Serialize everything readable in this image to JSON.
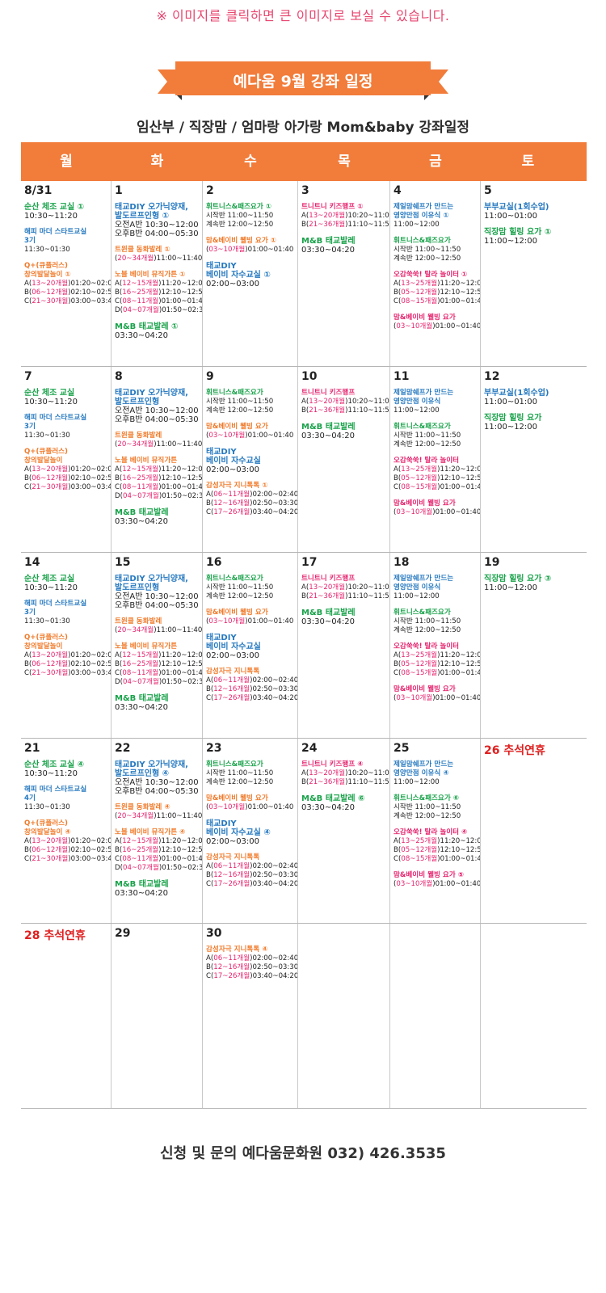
{
  "notice": "※ 이미지를 클릭하면 큰 이미지로 보실 수 있습니다.",
  "banner_title": "예다움 9월 강좌 일정",
  "subtitle": "임산부 / 직장맘 / 엄마랑 아가랑 Mom&baby 강좌일정",
  "colors": {
    "accent": "#f27c3a",
    "green": "#19a24a",
    "blue": "#2679c0",
    "orange": "#f07a2a",
    "pink": "#e5226d",
    "holiday": "#e01f1f"
  },
  "weekdays": [
    "월",
    "화",
    "수",
    "목",
    "금",
    "토"
  ],
  "weeks": [
    [
      {
        "date": "8/31",
        "events": [
          {
            "title": [
              "순산 체조 교실 ①"
            ],
            "c": "green",
            "big": true,
            "lines": [
              "10:30~11:20"
            ]
          },
          {
            "title": [
              "해피 마더 스타트교실",
              "3기"
            ],
            "c": "blue",
            "lines": [
              "11:30~01:30"
            ]
          },
          {
            "title": [
              "Q+(큐플러스)",
              "창의발달놀이 ①"
            ],
            "c": "orange",
            "lines": [
              "A|13~20개월|01:20~02:00",
              "B|06~12개월|02:10~02:50",
              "C|21~30개월|03:00~03:40"
            ]
          }
        ]
      },
      {
        "date": "1",
        "events": [
          {
            "title": [
              "태교DIY 오가닉양재,",
              "발도르프인형 ①"
            ],
            "c": "blue",
            "big": true,
            "lines": [
              "오전A반 10:30~12:00",
              "오후B반 04:00~05:30"
            ]
          },
          {
            "title": [
              "트윈클 동화발레 ①"
            ],
            "c": "orange",
            "lines": [
              "|20~34개월|11:00~11:40"
            ]
          },
          {
            "title": [
              "노블 베이비 뮤직가튼 ①"
            ],
            "c": "orange",
            "lines": [
              "A|12~15개월|11:20~12:00",
              "B|16~25개월|12:10~12:50",
              "C|08~11개월|01:00~01:40",
              "D|04~07개월|01:50~02:30"
            ]
          },
          {
            "title": [
              "M&B 태교발레 ①"
            ],
            "c": "green",
            "big": true,
            "lines": [
              "03:30~04:20"
            ]
          }
        ]
      },
      {
        "date": "2",
        "events": [
          {
            "title": [
              "휘트니스&패즈요가 ①"
            ],
            "c": "green",
            "lines": [
              "시작반 11:00~11:50",
              "계속반 12:00~12:50"
            ]
          },
          {
            "title": [
              "맘&베이비 웰빙 요가 ①"
            ],
            "c": "orange",
            "lines": [
              "|03~10개월|01:00~01:40"
            ]
          },
          {
            "title": [
              "태교DIY",
              "베이비 자수교실 ①"
            ],
            "c": "blue",
            "big": true,
            "lines": [
              "02:00~03:00"
            ]
          }
        ]
      },
      {
        "date": "3",
        "events": [
          {
            "title": [
              "트니트니 키즈행프 ①"
            ],
            "c": "pink",
            "lines": [
              "A|13~20개월|10:20~11:00",
              "B|21~36개월|11:10~11:50"
            ]
          },
          {
            "title": [
              "M&B 태교발레"
            ],
            "c": "green",
            "big": true,
            "lines": [
              "03:30~04:20"
            ]
          }
        ]
      },
      {
        "date": "4",
        "events": [
          {
            "title": [
              "제일맘쉐프가 만드는",
              "영양만점 이유식 ①"
            ],
            "c": "blue",
            "lines": [
              "11:00~12:00"
            ]
          },
          {
            "title": [
              "휘트니스&패즈요가"
            ],
            "c": "green",
            "lines": [
              "시작반 11:00~11:50",
              "계속반 12:00~12:50"
            ]
          },
          {
            "title": [
              "오감쑥쑥! 탈라 놀이터 ①"
            ],
            "c": "pink",
            "lines": [
              "A|13~25개월|11:20~12:00",
              "B|05~12개월|12:10~12:50",
              "C|08~15개월|01:00~01:40"
            ]
          },
          {
            "title": [
              "맘&베이비 웰빙 요가"
            ],
            "c": "pink",
            "lines": [
              "|03~10개월|01:00~01:40"
            ]
          }
        ]
      },
      {
        "date": "5",
        "events": [
          {
            "title": [
              "부부교실(1회수업)"
            ],
            "c": "blue",
            "big": true,
            "lines": [
              "11:00~01:00"
            ]
          },
          {
            "title": [
              "직장맘 힐링 요가 ①"
            ],
            "c": "green",
            "big": true,
            "lines": [
              "11:00~12:00"
            ]
          }
        ]
      }
    ],
    [
      {
        "date": "7",
        "events": [
          {
            "title": [
              "순산 체조 교실"
            ],
            "c": "green",
            "big": true,
            "lines": [
              "10:30~11:20"
            ]
          },
          {
            "title": [
              "해피 마더 스타트교실",
              "3기"
            ],
            "c": "blue",
            "lines": [
              "11:30~01:30"
            ]
          },
          {
            "title": [
              "Q+(큐플러스)",
              "창의발달놀이"
            ],
            "c": "orange",
            "lines": [
              "A|13~20개월|01:20~02:00",
              "B|06~12개월|02:10~02:50",
              "C|21~30개월|03:00~03:40"
            ]
          }
        ]
      },
      {
        "date": "8",
        "events": [
          {
            "title": [
              "태교DIY 오가닉양재,",
              "발도르프인형"
            ],
            "c": "blue",
            "big": true,
            "lines": [
              "오전A반 10:30~12:00",
              "오후B반 04:00~05:30"
            ]
          },
          {
            "title": [
              "트윈클 동화발레"
            ],
            "c": "orange",
            "lines": [
              "|20~34개월|11:00~11:40"
            ]
          },
          {
            "title": [
              "노블 베이비 뮤직가튼"
            ],
            "c": "orange",
            "lines": [
              "A|12~15개월|11:20~12:00",
              "B|16~25개월|12:10~12:50",
              "C|08~11개월|01:00~01:40",
              "D|04~07개월|01:50~02:30"
            ]
          },
          {
            "title": [
              "M&B 태교발레"
            ],
            "c": "green",
            "big": true,
            "lines": [
              "03:30~04:20"
            ]
          }
        ]
      },
      {
        "date": "9",
        "events": [
          {
            "title": [
              "휘트니스&패즈요가"
            ],
            "c": "green",
            "lines": [
              "시작반 11:00~11:50",
              "계속반 12:00~12:50"
            ]
          },
          {
            "title": [
              "맘&베이비 웰빙 요가"
            ],
            "c": "orange",
            "lines": [
              "|03~10개월|01:00~01:40"
            ]
          },
          {
            "title": [
              "태교DIY",
              "베이비 자수교실"
            ],
            "c": "blue",
            "big": true,
            "lines": [
              "02:00~03:00"
            ]
          },
          {
            "title": [
              "감성자극 지니톡톡 ①"
            ],
            "c": "orange",
            "lines": [
              "A|06~11개월|02:00~02:40",
              "B|12~16개월|02:50~03:30",
              "C|17~26개월|03:40~04:20"
            ]
          }
        ]
      },
      {
        "date": "10",
        "events": [
          {
            "title": [
              "트니트니 키즈행프"
            ],
            "c": "pink",
            "lines": [
              "A|13~20개월|10:20~11:00",
              "B|21~36개월|11:10~11:50"
            ]
          },
          {
            "title": [
              "M&B 태교발레"
            ],
            "c": "green",
            "big": true,
            "lines": [
              "03:30~04:20"
            ]
          }
        ]
      },
      {
        "date": "11",
        "events": [
          {
            "title": [
              "제일맘쉐프가 만드는",
              "영양만점 이유식"
            ],
            "c": "blue",
            "lines": [
              "11:00~12:00"
            ]
          },
          {
            "title": [
              "휘트니스&패즈요가"
            ],
            "c": "green",
            "lines": [
              "시작반 11:00~11:50",
              "계속반 12:00~12:50"
            ]
          },
          {
            "title": [
              "오감쑥쑥! 탈라 놀이터"
            ],
            "c": "pink",
            "lines": [
              "A|13~25개월|11:20~12:00",
              "B|05~12개월|12:10~12:50",
              "C|08~15개월|01:00~01:40"
            ]
          },
          {
            "title": [
              "맘&베이비 웰빙 요가"
            ],
            "c": "pink",
            "lines": [
              "|03~10개월|01:00~01:40"
            ]
          }
        ]
      },
      {
        "date": "12",
        "events": [
          {
            "title": [
              "부부교실(1회수업)"
            ],
            "c": "blue",
            "big": true,
            "lines": [
              "11:00~01:00"
            ]
          },
          {
            "title": [
              "직장맘 힐링 요가"
            ],
            "c": "green",
            "big": true,
            "lines": [
              "11:00~12:00"
            ]
          }
        ]
      }
    ],
    [
      {
        "date": "14",
        "events": [
          {
            "title": [
              "순산 체조 교실"
            ],
            "c": "green",
            "big": true,
            "lines": [
              "10:30~11:20"
            ]
          },
          {
            "title": [
              "해피 마더 스타트교실",
              "3기"
            ],
            "c": "blue",
            "lines": [
              "11:30~01:30"
            ]
          },
          {
            "title": [
              "Q+(큐플러스)",
              "창의발달놀이"
            ],
            "c": "orange",
            "lines": [
              "A|13~20개월|01:20~02:00",
              "B|06~12개월|02:10~02:50",
              "C|21~30개월|03:00~03:40"
            ]
          }
        ]
      },
      {
        "date": "15",
        "events": [
          {
            "title": [
              "태교DIY 오가닉양재,",
              "발도르프인형"
            ],
            "c": "blue",
            "big": true,
            "lines": [
              "오전A반 10:30~12:00",
              "오후B반 04:00~05:30"
            ]
          },
          {
            "title": [
              "트윈클 동화발레"
            ],
            "c": "orange",
            "lines": [
              "|20~34개월|11:00~11:40"
            ]
          },
          {
            "title": [
              "노블 베이비 뮤직가튼"
            ],
            "c": "orange",
            "lines": [
              "A|12~15개월|11:20~12:00",
              "B|16~25개월|12:10~12:50",
              "C|08~11개월|01:00~01:40",
              "D|04~07개월|01:50~02:30"
            ]
          },
          {
            "title": [
              "M&B 태교발레"
            ],
            "c": "green",
            "big": true,
            "lines": [
              "03:30~04:20"
            ]
          }
        ]
      },
      {
        "date": "16",
        "events": [
          {
            "title": [
              "휘트니스&패즈요가"
            ],
            "c": "green",
            "lines": [
              "시작반 11:00~11:50",
              "계속반 12:00~12:50"
            ]
          },
          {
            "title": [
              "맘&베이비 웰빙 요가"
            ],
            "c": "orange",
            "lines": [
              "|03~10개월|01:00~01:40"
            ]
          },
          {
            "title": [
              "태교DIY",
              "베이비 자수교실"
            ],
            "c": "blue",
            "big": true,
            "lines": [
              "02:00~03:00"
            ]
          },
          {
            "title": [
              "감성자극 지니톡톡"
            ],
            "c": "orange",
            "lines": [
              "A|06~11개월|02:00~02:40",
              "B|12~16개월|02:50~03:30",
              "C|17~26개월|03:40~04:20"
            ]
          }
        ]
      },
      {
        "date": "17",
        "events": [
          {
            "title": [
              "트니트니 키즈행프"
            ],
            "c": "pink",
            "lines": [
              "A|13~20개월|10:20~11:00",
              "B|21~36개월|11:10~11:50"
            ]
          },
          {
            "title": [
              "M&B 태교발레"
            ],
            "c": "green",
            "big": true,
            "lines": [
              "03:30~04:20"
            ]
          }
        ]
      },
      {
        "date": "18",
        "events": [
          {
            "title": [
              "제일맘쉐프가 만드는",
              "영양만점 이유식"
            ],
            "c": "blue",
            "lines": [
              "11:00~12:00"
            ]
          },
          {
            "title": [
              "휘트니스&패즈요가"
            ],
            "c": "green",
            "lines": [
              "시작반 11:00~11:50",
              "계속반 12:00~12:50"
            ]
          },
          {
            "title": [
              "오감쑥쑥! 탈라 놀이터"
            ],
            "c": "pink",
            "lines": [
              "A|13~25개월|11:20~12:00",
              "B|05~12개월|12:10~12:50",
              "C|08~15개월|01:00~01:40"
            ]
          },
          {
            "title": [
              "맘&베이비 웰빙 요가"
            ],
            "c": "pink",
            "lines": [
              "|03~10개월|01:00~01:40"
            ]
          }
        ]
      },
      {
        "date": "19",
        "events": [
          {
            "title": [
              "직장맘 힐링 요가 ③"
            ],
            "c": "green",
            "big": true,
            "lines": [
              "11:00~12:00"
            ]
          }
        ]
      }
    ],
    [
      {
        "date": "21",
        "events": [
          {
            "title": [
              "순산 체조 교실 ④"
            ],
            "c": "green",
            "big": true,
            "lines": [
              "10:30~11:20"
            ]
          },
          {
            "title": [
              "해피 마더 스타트교실",
              "4기"
            ],
            "c": "blue",
            "lines": [
              "11:30~01:30"
            ]
          },
          {
            "title": [
              "Q+(큐플러스)",
              "창의발달놀이 ④"
            ],
            "c": "orange",
            "lines": [
              "A|13~20개월|01:20~02:00",
              "B|06~12개월|02:10~02:50",
              "C|21~30개월|03:00~03:40"
            ]
          }
        ]
      },
      {
        "date": "22",
        "events": [
          {
            "title": [
              "태교DIY 오가닉양재,",
              "발도르프인형 ④"
            ],
            "c": "blue",
            "big": true,
            "lines": [
              "오전A반 10:30~12:00",
              "오후B반 04:00~05:30"
            ]
          },
          {
            "title": [
              "트윈클 동화발레 ④"
            ],
            "c": "orange",
            "lines": [
              "|20~34개월|11:00~11:40"
            ]
          },
          {
            "title": [
              "노블 베이비 뮤직가튼 ④"
            ],
            "c": "orange",
            "lines": [
              "A|12~15개월|11:20~12:00",
              "B|16~25개월|12:10~12:50",
              "C|08~11개월|01:00~01:40",
              "D|04~07개월|01:50~02:30"
            ]
          },
          {
            "title": [
              "M&B 태교발레"
            ],
            "c": "green",
            "big": true,
            "lines": [
              "03:30~04:20"
            ]
          }
        ]
      },
      {
        "date": "23",
        "events": [
          {
            "title": [
              "휘트니스&패즈요가"
            ],
            "c": "green",
            "lines": [
              "시작반 11:00~11:50",
              "계속반 12:00~12:50"
            ]
          },
          {
            "title": [
              "맘&베이비 웰빙 요가"
            ],
            "c": "orange",
            "lines": [
              "|03~10개월|01:00~01:40"
            ]
          },
          {
            "title": [
              "태교DIY",
              "베이비 자수교실 ④"
            ],
            "c": "blue",
            "big": true,
            "lines": [
              "02:00~03:00"
            ]
          },
          {
            "title": [
              "감성자극 지니톡톡"
            ],
            "c": "orange",
            "lines": [
              "A|06~11개월|02:00~02:40",
              "B|12~16개월|02:50~03:30",
              "C|17~26개월|03:40~04:20"
            ]
          }
        ]
      },
      {
        "date": "24",
        "events": [
          {
            "title": [
              "트니트니 키즈행프 ④"
            ],
            "c": "pink",
            "lines": [
              "A|13~20개월|10:20~11:00",
              "B|21~36개월|11:10~11:50"
            ]
          },
          {
            "title": [
              "M&B 태교발레 ⑥"
            ],
            "c": "green",
            "big": true,
            "lines": [
              "03:30~04:20"
            ]
          }
        ]
      },
      {
        "date": "25",
        "events": [
          {
            "title": [
              "제일맘쉐프가 만드는",
              "영양만점 이유식 ④"
            ],
            "c": "blue",
            "lines": [
              "11:00~12:00"
            ]
          },
          {
            "title": [
              "휘트니스&패즈요가 ⑥"
            ],
            "c": "green",
            "lines": [
              "시작반 11:00~11:50",
              "계속반 12:00~12:50"
            ]
          },
          {
            "title": [
              "오감쑥쑥! 탈라 놀이터 ④"
            ],
            "c": "pink",
            "lines": [
              "A|13~25개월|11:20~12:00",
              "B|05~12개월|12:10~12:50",
              "C|08~15개월|01:00~01:40"
            ]
          },
          {
            "title": [
              "맘&베이비 웰빙 요가 ⑤"
            ],
            "c": "pink",
            "lines": [
              "|03~10개월|01:00~01:40"
            ]
          }
        ]
      },
      {
        "date": "26 추석연휴",
        "holiday": true,
        "events": []
      }
    ],
    [
      {
        "date": "28 추석연휴",
        "holiday": true,
        "events": []
      },
      {
        "date": "29",
        "events": []
      },
      {
        "date": "30",
        "events": [
          {
            "title": [
              "감성자극 지니톡톡 ④"
            ],
            "c": "orange",
            "lines": [
              "A|06~11개월|02:00~02:40",
              "B|12~16개월|02:50~03:30",
              "C|17~26개월|03:40~04:20"
            ]
          }
        ]
      },
      {
        "date": "",
        "events": []
      },
      {
        "date": "",
        "events": []
      },
      {
        "date": "",
        "events": []
      }
    ]
  ],
  "footer": "신청 및 문의 예다움문화원 032) 426.3535"
}
